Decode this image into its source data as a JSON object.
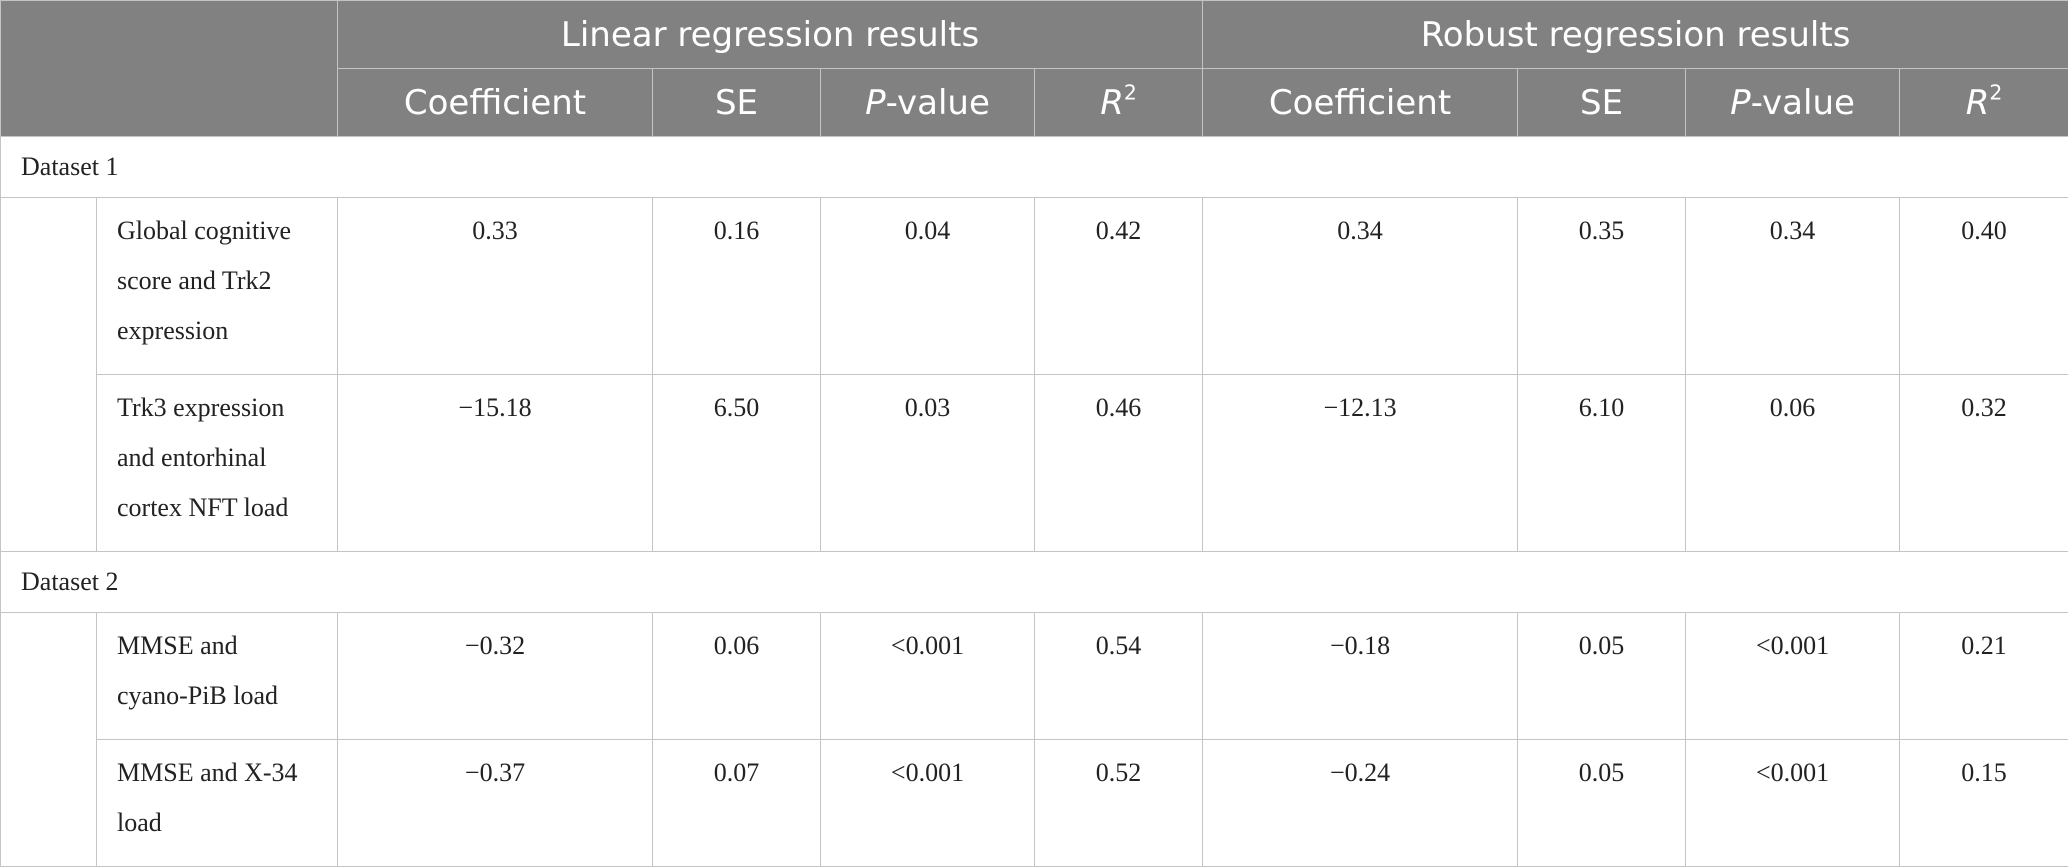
{
  "header": {
    "groups": [
      "Linear regression results",
      "Robust regression results"
    ],
    "columns": {
      "coefficient": "Coefficient",
      "se": "SE",
      "p_italic": "P",
      "p_suffix": "-value",
      "r_italic": "R",
      "r_sup": "2"
    }
  },
  "datasets": [
    {
      "label": "Dataset 1",
      "rows": [
        {
          "lines": [
            "Global cognitive",
            "score and Trk2",
            "expression"
          ],
          "linear": [
            "0.33",
            "0.16",
            "0.04",
            "0.42"
          ],
          "robust": [
            "0.34",
            "0.35",
            "0.34",
            "0.40"
          ]
        },
        {
          "lines": [
            "Trk3 expression",
            "and entorhinal",
            "cortex NFT load"
          ],
          "linear": [
            "−15.18",
            "6.50",
            "0.03",
            "0.46"
          ],
          "robust": [
            "−12.13",
            "6.10",
            "0.06",
            "0.32"
          ]
        }
      ]
    },
    {
      "label": "Dataset 2",
      "rows": [
        {
          "lines": [
            "MMSE and",
            "cyano-PiB load"
          ],
          "linear": [
            "−0.32",
            "0.06",
            "<0.001",
            "0.54"
          ],
          "robust": [
            "−0.18",
            "0.05",
            "<0.001",
            "0.21"
          ]
        },
        {
          "lines": [
            "MMSE and X-34",
            "load"
          ],
          "linear": [
            "−0.37",
            "0.07",
            "<0.001",
            "0.52"
          ],
          "robust": [
            "−0.24",
            "0.05",
            "<0.001",
            "0.15"
          ]
        }
      ]
    }
  ]
}
